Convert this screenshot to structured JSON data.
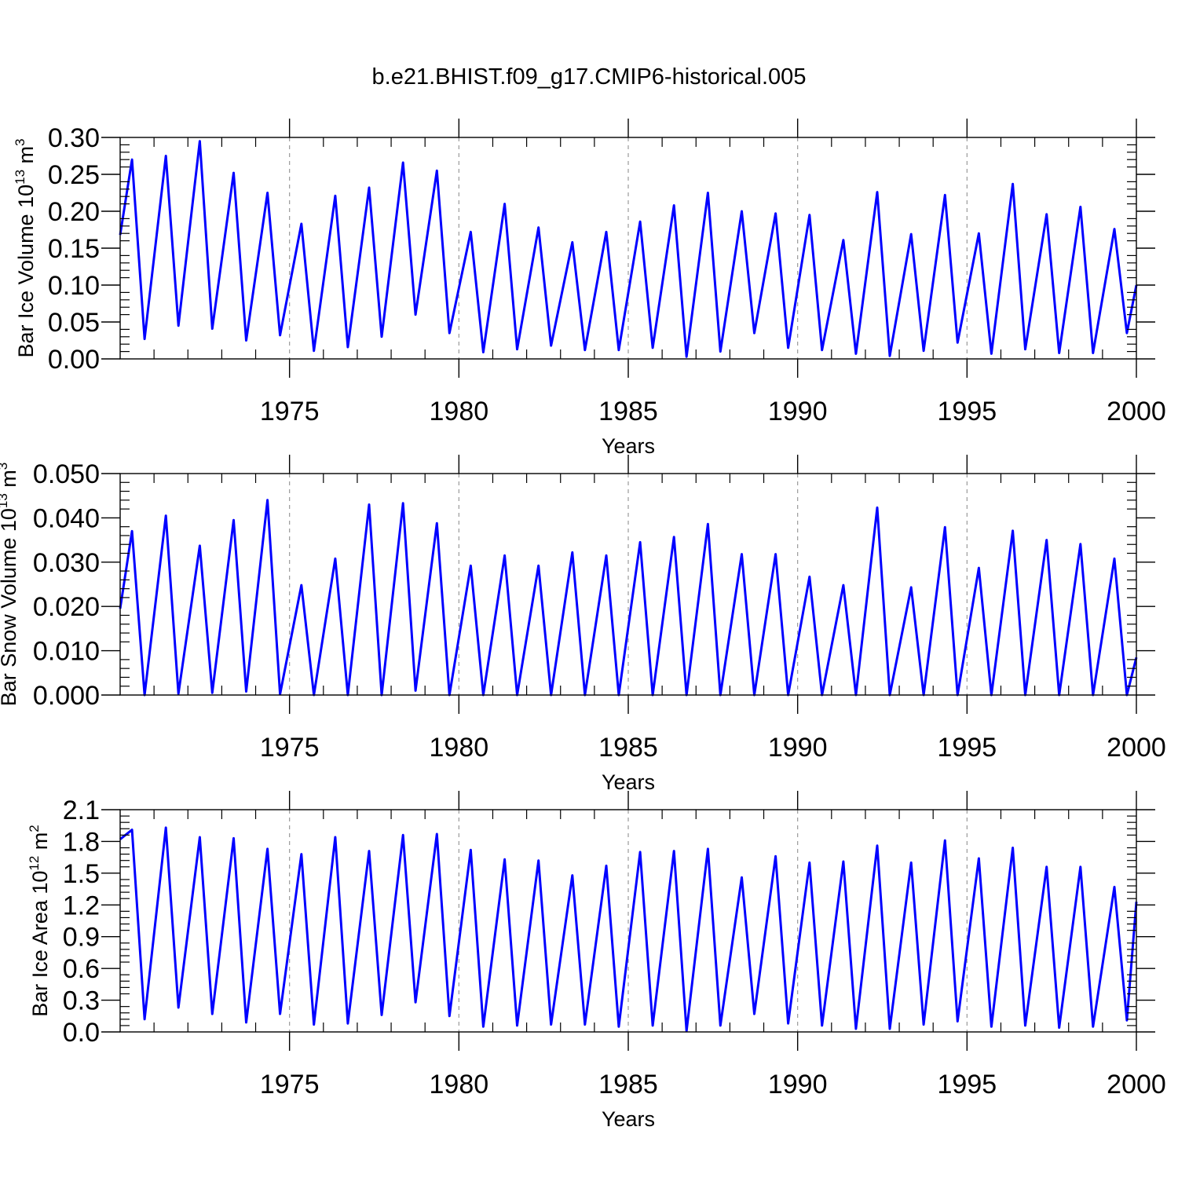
{
  "title": "b.e21.BHIST.f09_g17.CMIP6-historical.005",
  "colors": {
    "line": "#0000ff",
    "axis": "#000000",
    "grid": "#9a9a9a",
    "background": "#ffffff"
  },
  "chart_data": [
    {
      "type": "line",
      "name": "ice-volume",
      "ylabel_main": "Bar Ice Volume 10",
      "ylabel_exp": "13",
      "ylabel_unit": " m",
      "ylabel_unit_exp": "3",
      "xlabel": "Years",
      "xlim": [
        1970,
        2000
      ],
      "ylim": [
        0,
        0.3
      ],
      "xticks": [
        1975,
        1980,
        1985,
        1990,
        1995,
        2000
      ],
      "xtick_labels": [
        "1975",
        "1980",
        "1985",
        "1990",
        "1995",
        "2000"
      ],
      "yticks": [
        0,
        0.05,
        0.1,
        0.15,
        0.2,
        0.25,
        0.3
      ],
      "ytick_labels": [
        "0.00",
        "0.05",
        "0.10",
        "0.15",
        "0.20",
        "0.25",
        "0.30"
      ],
      "grid": "dashed vertical lines at 5-year marks",
      "series": [
        {
          "name": "Bar Ice Volume",
          "peaks": [
            0.27,
            0.275,
            0.295,
            0.252,
            0.225,
            0.183,
            0.221,
            0.232,
            0.266,
            0.255,
            0.172,
            0.21,
            0.178,
            0.158,
            0.172,
            0.186,
            0.208,
            0.225,
            0.2,
            0.197,
            0.195,
            0.161,
            0.226,
            0.169,
            0.222,
            0.17,
            0.237,
            0.196,
            0.206,
            0.176
          ],
          "troughs": [
            0.168,
            0.027,
            0.045,
            0.041,
            0.025,
            0.032,
            0.011,
            0.016,
            0.03,
            0.06,
            0.035,
            0.009,
            0.013,
            0.018,
            0.012,
            0.012,
            0.015,
            0.003,
            0.01,
            0.035,
            0.015,
            0.012,
            0.007,
            0.004,
            0.011,
            0.022,
            0.007,
            0.013,
            0.008,
            0.008,
            0.035
          ],
          "end_value": 0.1
        }
      ]
    },
    {
      "type": "line",
      "name": "snow-volume",
      "ylabel_main": "Bar Snow Volume 10",
      "ylabel_exp": "13",
      "ylabel_unit": " m",
      "ylabel_unit_exp": "3",
      "xlabel": "Years",
      "xlim": [
        1970,
        2000
      ],
      "ylim": [
        0,
        0.05
      ],
      "xticks": [
        1975,
        1980,
        1985,
        1990,
        1995,
        2000
      ],
      "xtick_labels": [
        "1975",
        "1980",
        "1985",
        "1990",
        "1995",
        "2000"
      ],
      "yticks": [
        0,
        0.01,
        0.02,
        0.03,
        0.04,
        0.05
      ],
      "ytick_labels": [
        "0.000",
        "0.010",
        "0.020",
        "0.030",
        "0.040",
        "0.050"
      ],
      "grid": "dashed vertical lines at 5-year marks",
      "series": [
        {
          "name": "Bar Snow Volume",
          "peaks": [
            0.037,
            0.0405,
            0.0337,
            0.0395,
            0.044,
            0.0248,
            0.0308,
            0.043,
            0.0433,
            0.0388,
            0.0292,
            0.0315,
            0.0292,
            0.0322,
            0.0315,
            0.0345,
            0.0357,
            0.0386,
            0.0318,
            0.0318,
            0.0267,
            0.0248,
            0.0423,
            0.0243,
            0.0379,
            0.0287,
            0.0371,
            0.035,
            0.0341,
            0.0308
          ],
          "troughs": [
            0.0195,
            0.0,
            0.0003,
            0.0005,
            0.0008,
            0.0002,
            0.0,
            0.0,
            0.0,
            0.001,
            0.0,
            0.0,
            0.0,
            0.0,
            0.0,
            0.0,
            0.0,
            0.0,
            0.0,
            0.0,
            0.0,
            0.0,
            0.0,
            0.0,
            0.0,
            0.0,
            0.0,
            0.0,
            0.0,
            0.0,
            0.0
          ],
          "end_value": 0.0085
        }
      ]
    },
    {
      "type": "line",
      "name": "ice-area",
      "ylabel_main": "Bar Ice Area 10",
      "ylabel_exp": "12",
      "ylabel_unit": " m",
      "ylabel_unit_exp": "2",
      "xlabel": "Years",
      "xlim": [
        1970,
        2000
      ],
      "ylim": [
        0,
        2.1
      ],
      "xticks": [
        1975,
        1980,
        1985,
        1990,
        1995,
        2000
      ],
      "xtick_labels": [
        "1975",
        "1980",
        "1985",
        "1990",
        "1995",
        "2000"
      ],
      "yticks": [
        0,
        0.3,
        0.6,
        0.9,
        1.2,
        1.5,
        1.8,
        2.1
      ],
      "ytick_labels": [
        "0.0",
        "0.3",
        "0.6",
        "0.9",
        "1.2",
        "1.5",
        "1.8",
        "2.1"
      ],
      "grid": "dashed vertical lines at 5-year marks",
      "series": [
        {
          "name": "Bar Ice Area",
          "peaks": [
            1.91,
            1.93,
            1.84,
            1.83,
            1.73,
            1.68,
            1.84,
            1.71,
            1.86,
            1.87,
            1.72,
            1.63,
            1.62,
            1.48,
            1.57,
            1.7,
            1.71,
            1.73,
            1.46,
            1.66,
            1.6,
            1.61,
            1.76,
            1.6,
            1.81,
            1.64,
            1.74,
            1.56,
            1.56,
            1.37
          ],
          "troughs": [
            1.82,
            0.12,
            0.23,
            0.17,
            0.09,
            0.17,
            0.07,
            0.08,
            0.16,
            0.28,
            0.15,
            0.05,
            0.06,
            0.07,
            0.07,
            0.05,
            0.06,
            0.01,
            0.06,
            0.17,
            0.08,
            0.06,
            0.03,
            0.03,
            0.07,
            0.1,
            0.05,
            0.06,
            0.04,
            0.05,
            0.11
          ],
          "end_value": 1.23
        }
      ]
    }
  ]
}
